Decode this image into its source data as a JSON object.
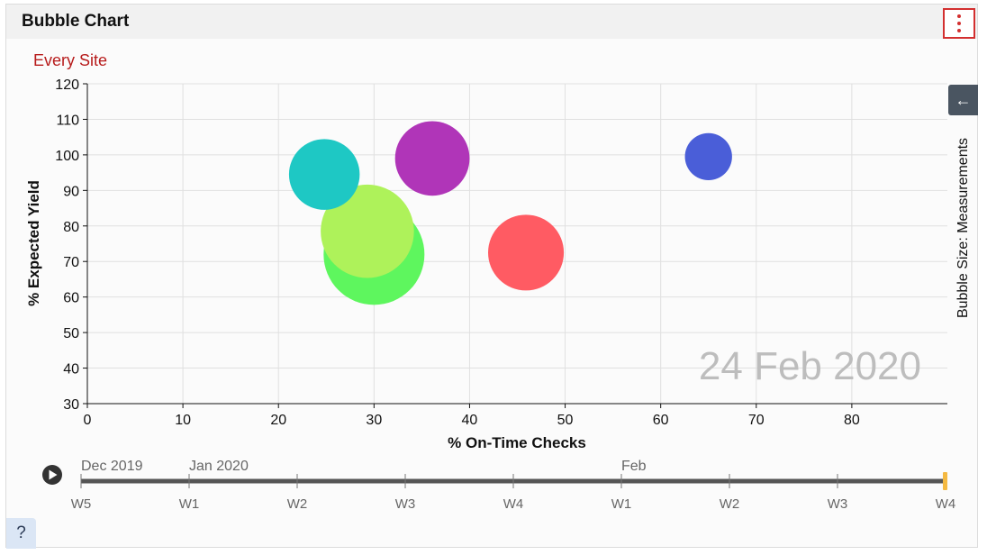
{
  "panel": {
    "title": "Bubble Chart",
    "menu_icon": "kebab-menu-icon",
    "subtitle": "Every Site",
    "side_label": "Bubble Size: Measurements",
    "collapse_icon": "arrow-left-icon",
    "help_label": "?"
  },
  "chart_data": {
    "type": "scatter",
    "xlabel": "% On-Time Checks",
    "ylabel": "% Expected Yield",
    "xlim": [
      0,
      90
    ],
    "ylim": [
      30,
      120
    ],
    "x_ticks": [
      0,
      10,
      20,
      30,
      40,
      50,
      60,
      70,
      80
    ],
    "y_ticks": [
      30,
      40,
      50,
      60,
      70,
      80,
      90,
      100,
      110,
      120
    ],
    "grid": true,
    "watermark": "24 Feb 2020",
    "points": [
      {
        "x": 30.0,
        "y": 72,
        "size": 5.5,
        "color": "#5ef65e"
      },
      {
        "x": 29.3,
        "y": 78.5,
        "size": 4.7,
        "color": "#aef25a"
      },
      {
        "x": 24.8,
        "y": 94.5,
        "size": 2.7,
        "color": "#1ec8c4"
      },
      {
        "x": 36.1,
        "y": 99,
        "size": 3.0,
        "color": "#b035b8"
      },
      {
        "x": 45.9,
        "y": 72.5,
        "size": 3.1,
        "color": "#ff5b63"
      },
      {
        "x": 65.0,
        "y": 99.5,
        "size": 1.2,
        "color": "#4a5ed8"
      }
    ]
  },
  "timeline": {
    "play_icon": "play-icon",
    "months": [
      {
        "label": "Dec 2019",
        "week_index": 0
      },
      {
        "label": "Jan 2020",
        "week_index": 1
      },
      {
        "label": "Feb",
        "week_index": 5
      }
    ],
    "weeks": [
      "W5",
      "W1",
      "W2",
      "W3",
      "W4",
      "W1",
      "W2",
      "W3",
      "W4"
    ],
    "selected_week_index": 8
  }
}
